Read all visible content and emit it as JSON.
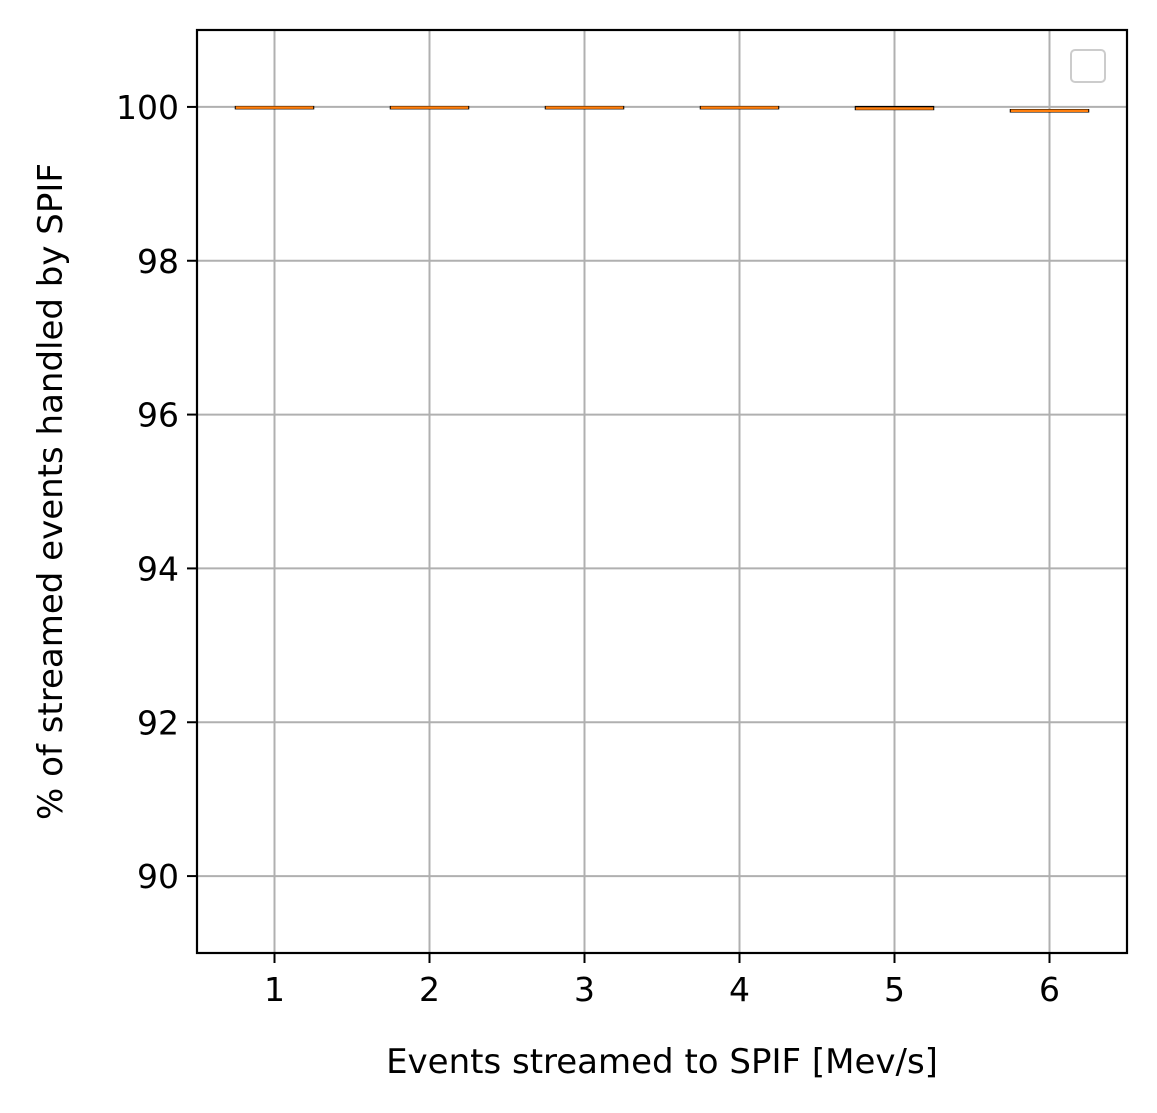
{
  "chart_data": {
    "type": "box",
    "title": "",
    "xlabel": "Events streamed to SPIF [Mev/s]",
    "ylabel": "% of streamed events handled by SPIF",
    "categories": [
      "1",
      "2",
      "3",
      "4",
      "5",
      "6"
    ],
    "x": [
      1,
      2,
      3,
      4,
      5,
      6
    ],
    "xlim": [
      0.5,
      6.5
    ],
    "ylim": [
      89,
      101
    ],
    "yticks": [
      90,
      92,
      94,
      96,
      98,
      100
    ],
    "ytick_labels": [
      "90",
      "92",
      "94",
      "96",
      "98",
      "100"
    ],
    "grid": true,
    "legend": {
      "placement": "top-right",
      "entries": []
    },
    "boxes": [
      {
        "x": 1,
        "q1": 99.99,
        "median": 99.99,
        "q3": 100.0
      },
      {
        "x": 2,
        "q1": 99.99,
        "median": 99.99,
        "q3": 100.0
      },
      {
        "x": 3,
        "q1": 99.99,
        "median": 99.99,
        "q3": 100.0
      },
      {
        "x": 4,
        "q1": 99.99,
        "median": 99.99,
        "q3": 100.0
      },
      {
        "x": 5,
        "q1": 99.97,
        "median": 99.98,
        "q3": 100.0
      },
      {
        "x": 6,
        "q1": 99.94,
        "median": 99.95,
        "q3": 99.96
      }
    ],
    "colors": {
      "box": "#000000",
      "median": "#ff7f0e",
      "grid": "#b0b0b0"
    }
  }
}
